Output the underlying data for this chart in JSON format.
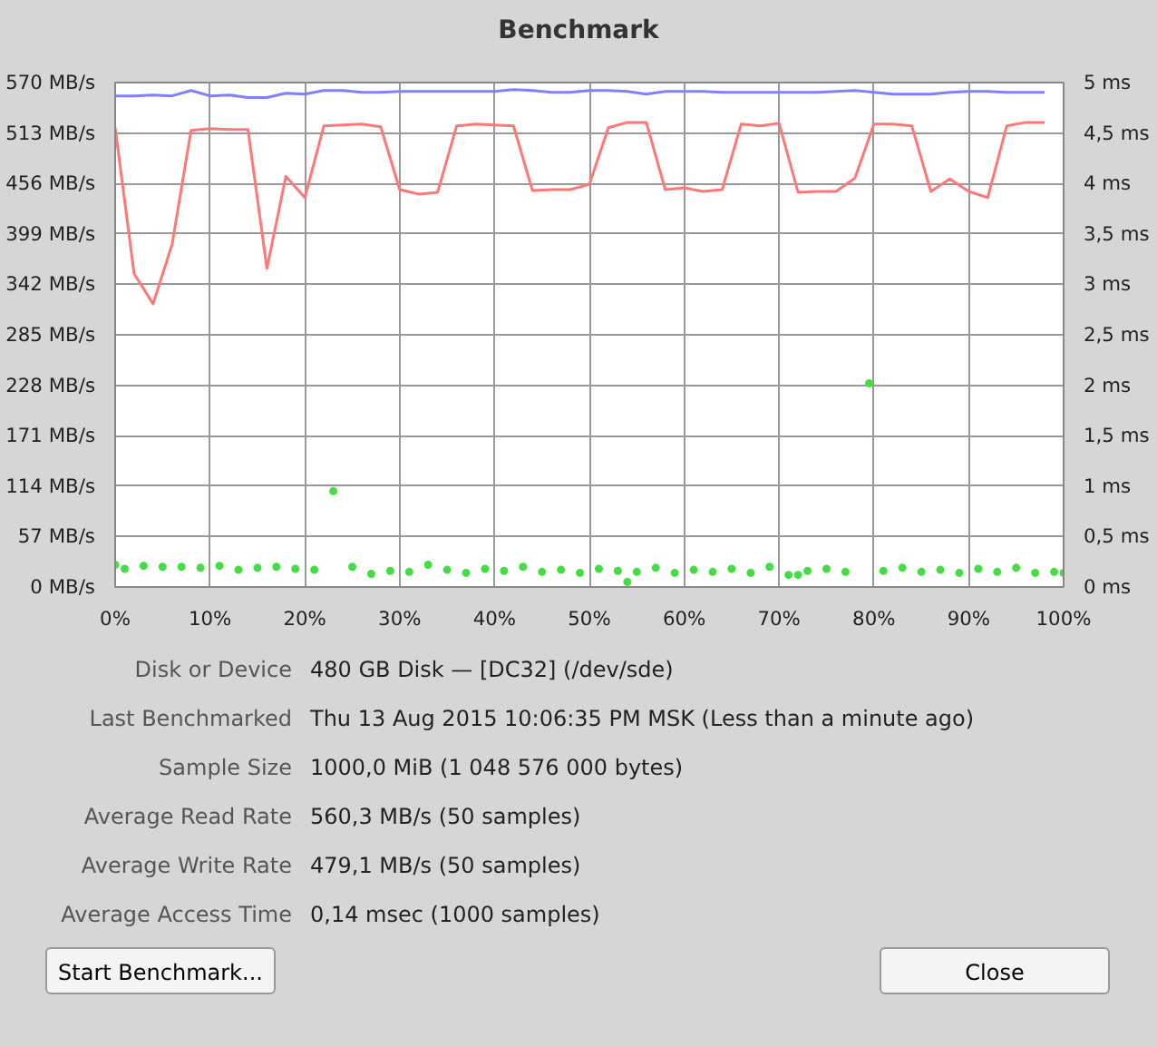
{
  "chart_data": {
    "type": "line",
    "title": "Benchmark",
    "x": [
      0,
      2,
      4,
      6,
      8,
      10,
      12,
      14,
      16,
      18,
      20,
      22,
      24,
      26,
      28,
      30,
      32,
      34,
      36,
      38,
      40,
      42,
      44,
      46,
      48,
      50,
      52,
      54,
      56,
      58,
      60,
      62,
      64,
      66,
      68,
      70,
      72,
      74,
      76,
      78,
      80,
      82,
      84,
      86,
      88,
      90,
      92,
      94,
      96,
      98
    ],
    "xlim": [
      0,
      100
    ],
    "xticks": [
      {
        "value": 0,
        "label": "0%"
      },
      {
        "value": 10,
        "label": "10%"
      },
      {
        "value": 20,
        "label": "20%"
      },
      {
        "value": 30,
        "label": "30%"
      },
      {
        "value": 40,
        "label": "40%"
      },
      {
        "value": 50,
        "label": "50%"
      },
      {
        "value": 60,
        "label": "60%"
      },
      {
        "value": 70,
        "label": "70%"
      },
      {
        "value": 80,
        "label": "80%"
      },
      {
        "value": 90,
        "label": "90%"
      },
      {
        "value": 100,
        "label": "100%"
      }
    ],
    "ylim": [
      0,
      570
    ],
    "yticks": [
      {
        "value": 0,
        "label": "0 MB/s"
      },
      {
        "value": 57,
        "label": "57 MB/s"
      },
      {
        "value": 114,
        "label": "114 MB/s"
      },
      {
        "value": 171,
        "label": "171 MB/s"
      },
      {
        "value": 228,
        "label": "228 MB/s"
      },
      {
        "value": 285,
        "label": "285 MB/s"
      },
      {
        "value": 342,
        "label": "342 MB/s"
      },
      {
        "value": 399,
        "label": "399 MB/s"
      },
      {
        "value": 456,
        "label": "456 MB/s"
      },
      {
        "value": 513,
        "label": "513 MB/s"
      },
      {
        "value": 570,
        "label": "570 MB/s"
      }
    ],
    "y2lim": [
      0,
      5
    ],
    "y2ticks": [
      {
        "value": 0,
        "label": "0 ms"
      },
      {
        "value": 0.5,
        "label": "0,5 ms"
      },
      {
        "value": 1,
        "label": "1 ms"
      },
      {
        "value": 1.5,
        "label": "1,5 ms"
      },
      {
        "value": 2,
        "label": "2 ms"
      },
      {
        "value": 2.5,
        "label": "2,5 ms"
      },
      {
        "value": 3,
        "label": "3 ms"
      },
      {
        "value": 3.5,
        "label": "3,5 ms"
      },
      {
        "value": 4,
        "label": "4 ms"
      },
      {
        "value": 4.5,
        "label": "4,5 ms"
      },
      {
        "value": 5,
        "label": "5 ms"
      }
    ],
    "grid": true,
    "series": [
      {
        "color": "#8080ff",
        "values": [
          555,
          555,
          556,
          555,
          561,
          555,
          556,
          553,
          553,
          558,
          557,
          561,
          561,
          559,
          559,
          560,
          560,
          560,
          560,
          560,
          560,
          562,
          561,
          559,
          559,
          561,
          561,
          560,
          557,
          560,
          560,
          560,
          559,
          559,
          559,
          559,
          559,
          559,
          560,
          561,
          559,
          557,
          557,
          557,
          559,
          560,
          560,
          559,
          559,
          559
        ]
      },
      {
        "color": "#ff7777",
        "values": [
          519,
          354,
          320,
          387,
          516,
          518,
          517,
          517,
          360,
          464,
          440,
          521,
          522,
          523,
          520,
          449,
          444,
          446,
          521,
          523,
          522,
          521,
          448,
          449,
          449,
          455,
          519,
          525,
          525,
          449,
          451,
          447,
          449,
          523,
          521,
          524,
          446,
          447,
          447,
          462,
          523,
          523,
          521,
          447,
          461,
          447,
          440,
          521,
          525,
          525
        ]
      },
      {
        "type": "scatter",
        "axis": "y2",
        "marker": "circle",
        "color": "#44dd44",
        "x": [
          0,
          1,
          3,
          5,
          7,
          9,
          11,
          13,
          15,
          17,
          19,
          21,
          23,
          25,
          27,
          29,
          31,
          33,
          35,
          37,
          39,
          41,
          43,
          45,
          47,
          49,
          51,
          53,
          54,
          55,
          57,
          59,
          61,
          63,
          65,
          67,
          69,
          71,
          72,
          73,
          75,
          77,
          79.5,
          81,
          83,
          85,
          87,
          89,
          91,
          93,
          95,
          97,
          99,
          100
        ],
        "values": [
          0.22,
          0.18,
          0.21,
          0.2,
          0.2,
          0.19,
          0.21,
          0.17,
          0.19,
          0.2,
          0.18,
          0.17,
          0.95,
          0.2,
          0.13,
          0.16,
          0.15,
          0.22,
          0.17,
          0.14,
          0.18,
          0.16,
          0.2,
          0.15,
          0.17,
          0.14,
          0.18,
          0.16,
          0.05,
          0.15,
          0.19,
          0.14,
          0.17,
          0.15,
          0.18,
          0.14,
          0.2,
          0.12,
          0.12,
          0.16,
          0.18,
          0.15,
          2.02,
          0.16,
          0.19,
          0.15,
          0.17,
          0.14,
          0.18,
          0.15,
          0.19,
          0.14,
          0.15,
          0.14
        ]
      }
    ],
    "annotations": [
      "Disk or Device",
      "480 GB Disk — [DC32] (/dev/sde)",
      "Last Benchmarked",
      "Thu 13 Aug 2015 10:06:35 PM MSK (Less than a minute ago)",
      "Sample Size",
      "1000,0 MiB (1 048 576 000 bytes)",
      "Average Read Rate",
      "560,3 MB/s (50 samples)",
      "Average Write Rate",
      "479,1 MB/s (50 samples)",
      "Average Access Time",
      "0,14 msec (1000 samples)",
      "Start Benchmark...",
      "Close"
    ]
  }
}
